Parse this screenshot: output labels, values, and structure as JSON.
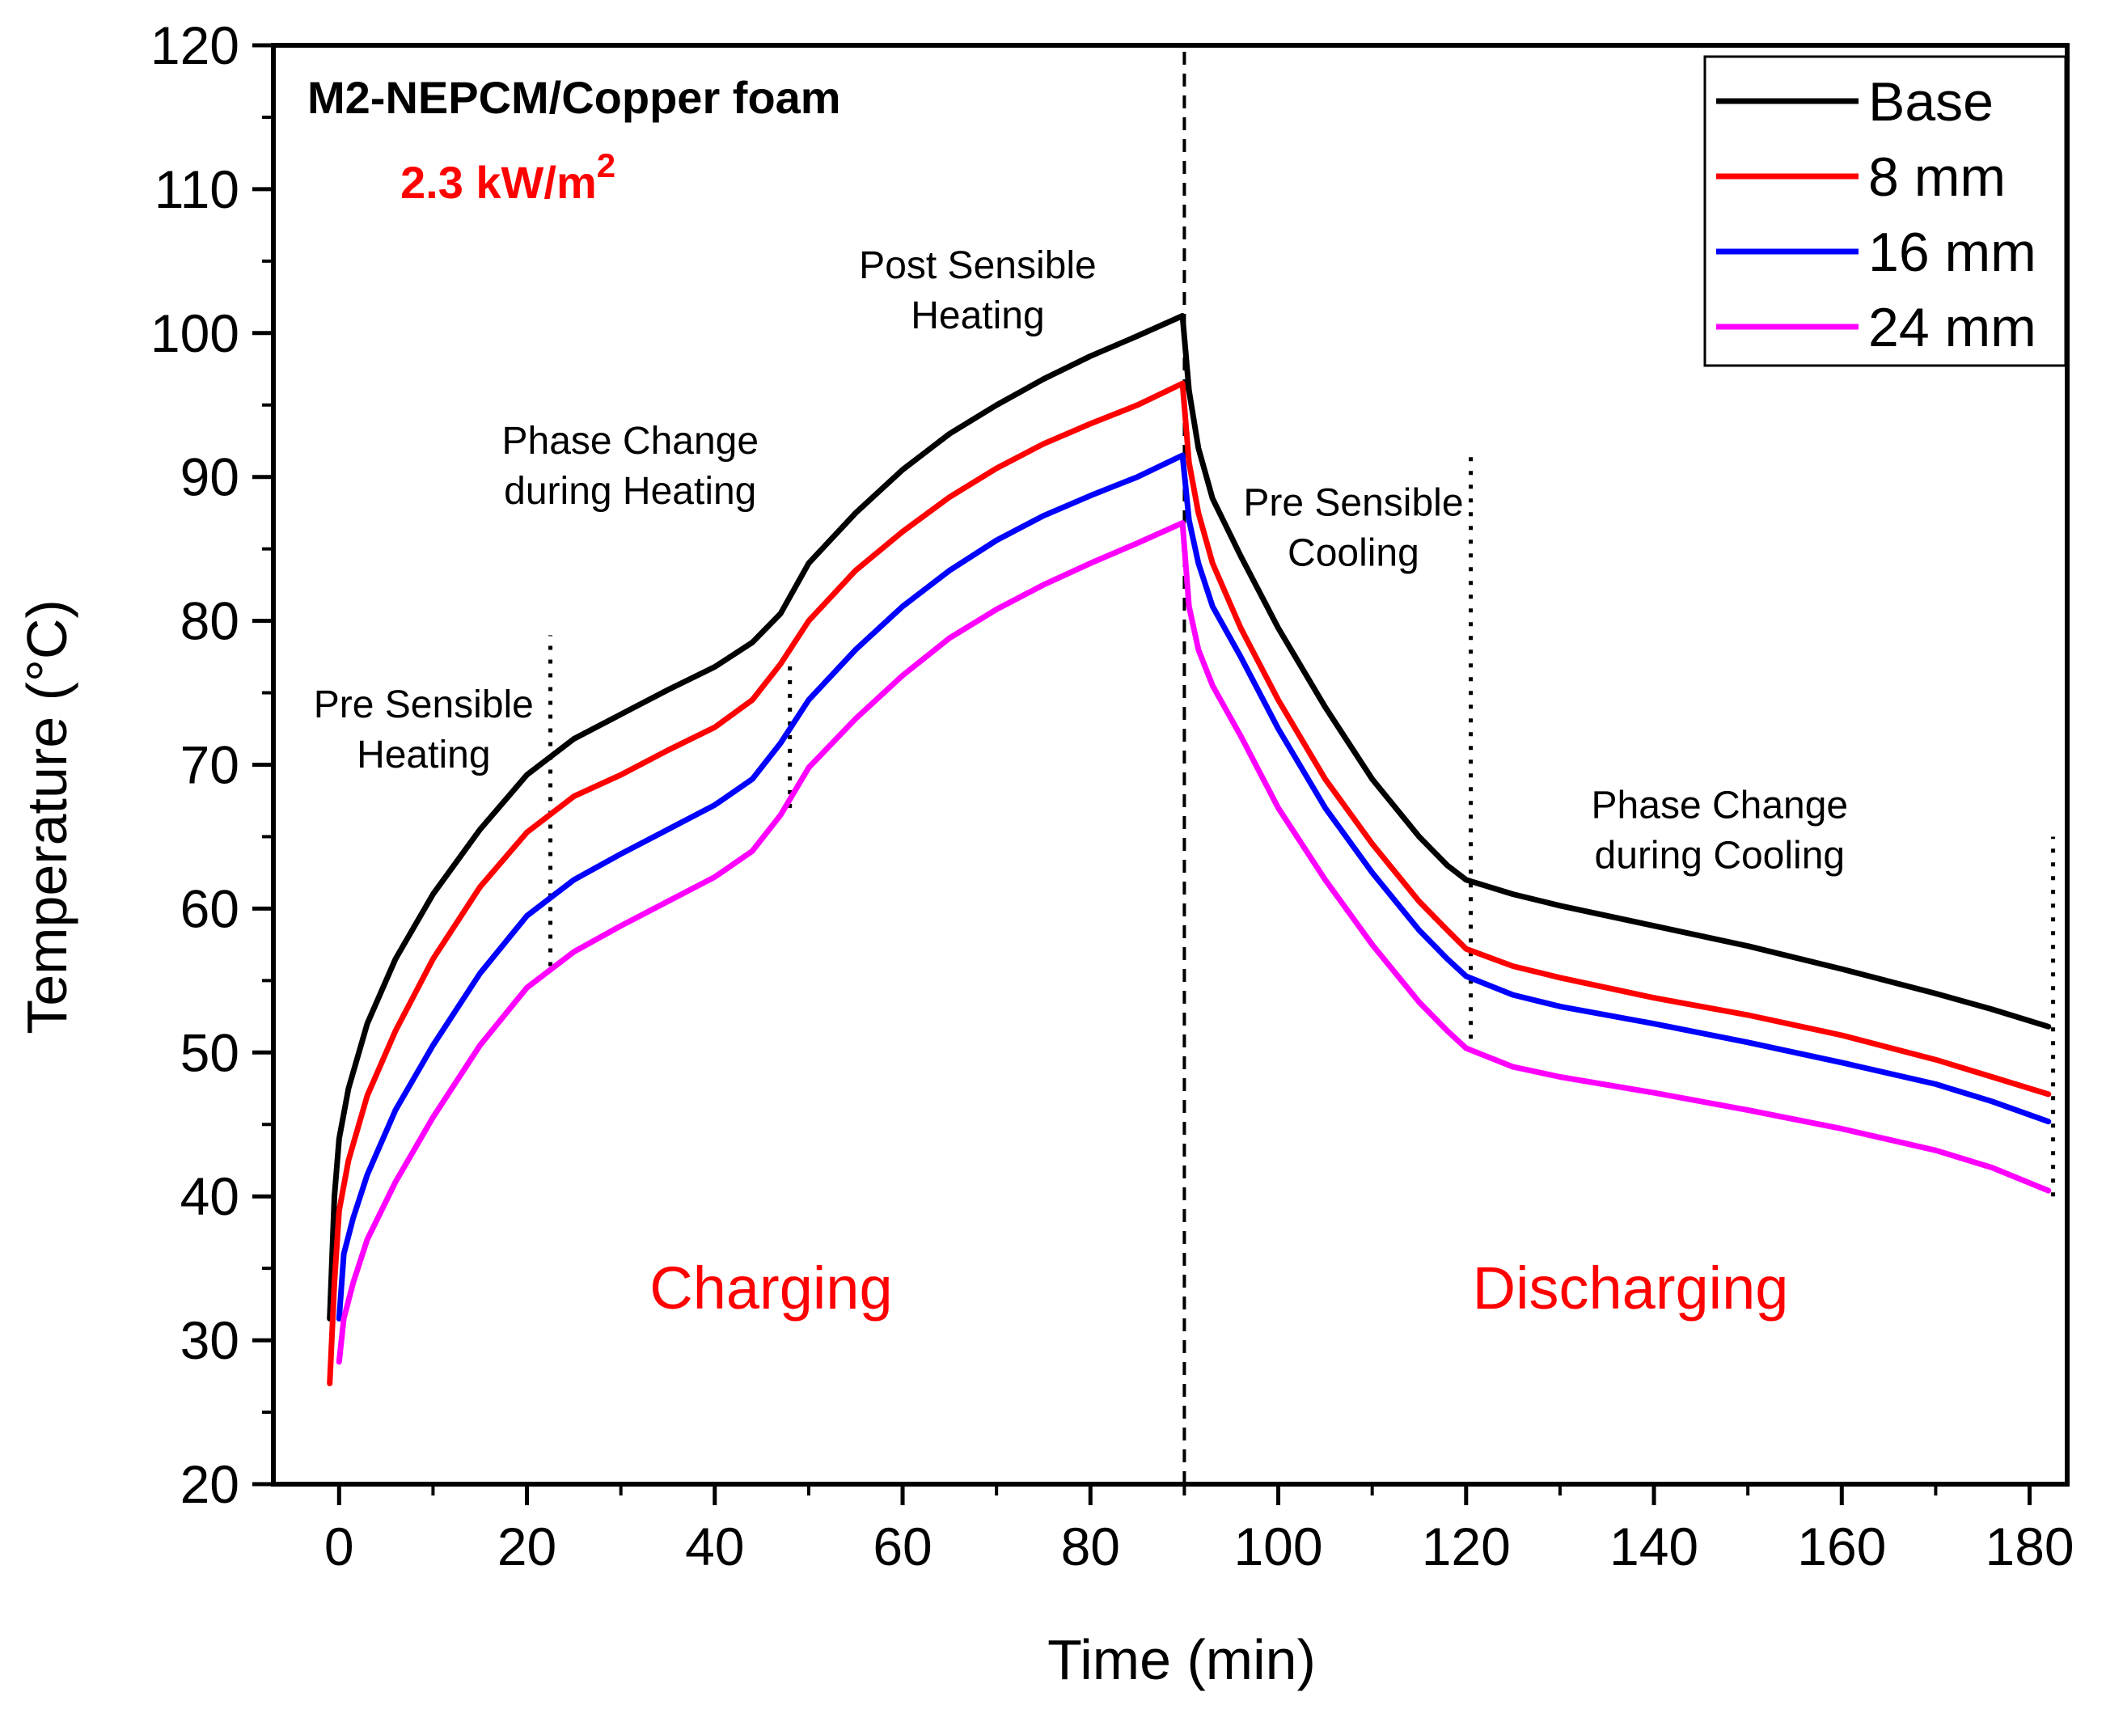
{
  "chart_data": {
    "type": "line",
    "title": "M2-NEPCM/Copper foam",
    "subtitle": {
      "text": "2.3 kW/m",
      "superscript": "2",
      "color": "#ff0000"
    },
    "xlabel": "Time (min)",
    "ylabel": "Temperature (°C)",
    "xlim": [
      -7,
      184
    ],
    "ylim": [
      20,
      120
    ],
    "xticks": [
      0,
      20,
      40,
      60,
      80,
      100,
      120,
      140,
      160,
      180
    ],
    "yticks": [
      20,
      30,
      40,
      50,
      60,
      70,
      80,
      90,
      100,
      110,
      120
    ],
    "grid": false,
    "legend_position": "top-right",
    "series": [
      {
        "name": "Base",
        "color": "#000000",
        "points": [
          [
            -1,
            31.5
          ],
          [
            -0.5,
            40
          ],
          [
            0,
            44
          ],
          [
            1,
            47.5
          ],
          [
            3,
            52
          ],
          [
            6,
            56.5
          ],
          [
            10,
            61
          ],
          [
            15,
            65.5
          ],
          [
            20,
            69.3
          ],
          [
            25,
            71.8
          ],
          [
            30,
            73.5
          ],
          [
            35,
            75.2
          ],
          [
            40,
            76.8
          ],
          [
            44,
            78.5
          ],
          [
            47,
            80.5
          ],
          [
            50,
            84
          ],
          [
            55,
            87.5
          ],
          [
            60,
            90.5
          ],
          [
            65,
            93
          ],
          [
            70,
            95
          ],
          [
            75,
            96.8
          ],
          [
            80,
            98.4
          ],
          [
            85,
            99.8
          ],
          [
            89.8,
            101.2
          ],
          [
            90.5,
            96
          ],
          [
            91.5,
            92
          ],
          [
            93,
            88.5
          ],
          [
            96,
            84.5
          ],
          [
            100,
            79.5
          ],
          [
            105,
            74
          ],
          [
            110,
            69
          ],
          [
            115,
            65
          ],
          [
            118,
            63
          ],
          [
            120,
            62
          ],
          [
            125,
            61
          ],
          [
            130,
            60.2
          ],
          [
            140,
            58.8
          ],
          [
            150,
            57.4
          ],
          [
            160,
            55.8
          ],
          [
            170,
            54.1
          ],
          [
            176,
            53
          ],
          [
            182,
            51.8
          ]
        ]
      },
      {
        "name": "8 mm",
        "color": "#ff0000",
        "points": [
          [
            -1,
            27
          ],
          [
            -0.5,
            34
          ],
          [
            0,
            39
          ],
          [
            1,
            42.5
          ],
          [
            3,
            47
          ],
          [
            6,
            51.5
          ],
          [
            10,
            56.5
          ],
          [
            15,
            61.5
          ],
          [
            20,
            65.3
          ],
          [
            25,
            67.8
          ],
          [
            30,
            69.3
          ],
          [
            35,
            71
          ],
          [
            40,
            72.6
          ],
          [
            44,
            74.5
          ],
          [
            47,
            77
          ],
          [
            50,
            80
          ],
          [
            55,
            83.5
          ],
          [
            60,
            86.2
          ],
          [
            65,
            88.6
          ],
          [
            70,
            90.6
          ],
          [
            75,
            92.3
          ],
          [
            80,
            93.7
          ],
          [
            85,
            95
          ],
          [
            89.8,
            96.5
          ],
          [
            90.5,
            91
          ],
          [
            91.5,
            87.5
          ],
          [
            93,
            84
          ],
          [
            96,
            79.5
          ],
          [
            100,
            74.5
          ],
          [
            105,
            69
          ],
          [
            110,
            64.5
          ],
          [
            115,
            60.5
          ],
          [
            118,
            58.5
          ],
          [
            120,
            57.2
          ],
          [
            125,
            56
          ],
          [
            130,
            55.2
          ],
          [
            140,
            53.8
          ],
          [
            150,
            52.6
          ],
          [
            160,
            51.2
          ],
          [
            170,
            49.5
          ],
          [
            176,
            48.3
          ],
          [
            182,
            47.1
          ]
        ]
      },
      {
        "name": "16 mm",
        "color": "#0000ff",
        "points": [
          [
            0,
            31.5
          ],
          [
            0.5,
            36
          ],
          [
            1.5,
            38.5
          ],
          [
            3,
            41.5
          ],
          [
            6,
            46
          ],
          [
            10,
            50.5
          ],
          [
            15,
            55.5
          ],
          [
            20,
            59.5
          ],
          [
            25,
            62
          ],
          [
            30,
            63.8
          ],
          [
            35,
            65.5
          ],
          [
            40,
            67.2
          ],
          [
            44,
            69
          ],
          [
            47,
            71.5
          ],
          [
            50,
            74.5
          ],
          [
            55,
            78
          ],
          [
            60,
            81
          ],
          [
            65,
            83.5
          ],
          [
            70,
            85.6
          ],
          [
            75,
            87.3
          ],
          [
            80,
            88.7
          ],
          [
            85,
            90
          ],
          [
            89.8,
            91.5
          ],
          [
            90.5,
            87
          ],
          [
            91.5,
            84
          ],
          [
            93,
            81
          ],
          [
            96,
            77.5
          ],
          [
            100,
            72.5
          ],
          [
            105,
            67
          ],
          [
            110,
            62.5
          ],
          [
            115,
            58.5
          ],
          [
            118,
            56.5
          ],
          [
            120,
            55.3
          ],
          [
            125,
            54
          ],
          [
            130,
            53.2
          ],
          [
            140,
            52
          ],
          [
            150,
            50.7
          ],
          [
            160,
            49.3
          ],
          [
            170,
            47.8
          ],
          [
            176,
            46.6
          ],
          [
            182,
            45.2
          ]
        ]
      },
      {
        "name": "24 mm",
        "color": "#ff00ff",
        "points": [
          [
            0,
            28.5
          ],
          [
            0.5,
            31.5
          ],
          [
            1.5,
            34
          ],
          [
            3,
            37
          ],
          [
            6,
            41
          ],
          [
            10,
            45.5
          ],
          [
            15,
            50.5
          ],
          [
            20,
            54.5
          ],
          [
            25,
            57
          ],
          [
            30,
            58.8
          ],
          [
            35,
            60.5
          ],
          [
            40,
            62.2
          ],
          [
            44,
            64
          ],
          [
            47,
            66.5
          ],
          [
            50,
            69.8
          ],
          [
            55,
            73.2
          ],
          [
            60,
            76.2
          ],
          [
            65,
            78.8
          ],
          [
            70,
            80.8
          ],
          [
            75,
            82.5
          ],
          [
            80,
            84
          ],
          [
            85,
            85.4
          ],
          [
            89.8,
            86.8
          ],
          [
            90.5,
            81
          ],
          [
            91.5,
            78
          ],
          [
            93,
            75.5
          ],
          [
            96,
            72
          ],
          [
            100,
            67
          ],
          [
            105,
            62
          ],
          [
            110,
            57.5
          ],
          [
            115,
            53.5
          ],
          [
            118,
            51.5
          ],
          [
            120,
            50.3
          ],
          [
            125,
            49
          ],
          [
            130,
            48.3
          ],
          [
            140,
            47.2
          ],
          [
            150,
            46
          ],
          [
            160,
            44.7
          ],
          [
            170,
            43.2
          ],
          [
            176,
            42
          ],
          [
            182,
            40.4
          ]
        ]
      }
    ],
    "vertical_markers": [
      {
        "x": 22.5,
        "y_range": [
          56,
          79
        ],
        "style": "dotted"
      },
      {
        "x": 48,
        "y_range": [
          67,
          77
        ],
        "style": "dotted"
      },
      {
        "x": 90,
        "y_range": [
          20,
          120
        ],
        "style": "dashed"
      },
      {
        "x": 120.5,
        "y_range": [
          50,
          92
        ],
        "style": "dotted"
      },
      {
        "x": 182.5,
        "y_range": [
          40,
          65
        ],
        "style": "dotted"
      }
    ],
    "annotations": [
      {
        "lines": [
          "Pre Sensible",
          "Heating"
        ],
        "x": 9,
        "y": 73.3
      },
      {
        "lines": [
          "Phase Change",
          "during Heating"
        ],
        "x": 31,
        "y": 91.6
      },
      {
        "lines": [
          "Post Sensible",
          "Heating"
        ],
        "x": 68,
        "y": 103.8
      },
      {
        "lines": [
          "Pre Sensible",
          "Cooling"
        ],
        "x": 108,
        "y": 87.3
      },
      {
        "lines": [
          "Phase Change",
          "during Cooling"
        ],
        "x": 147,
        "y": 66.3
      }
    ],
    "phase_labels": [
      {
        "text": "Charging",
        "x": 46,
        "y": 32.2,
        "color": "#ff0000"
      },
      {
        "text": "Discharging",
        "x": 137.5,
        "y": 32.2,
        "color": "#ff0000"
      }
    ]
  }
}
